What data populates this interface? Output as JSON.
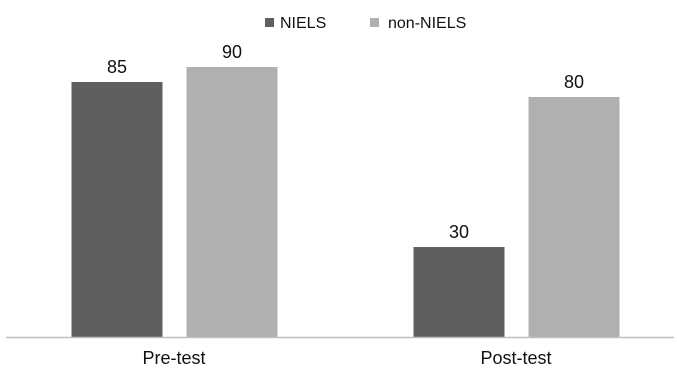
{
  "chart_data": {
    "type": "bar",
    "title": "",
    "xlabel": "",
    "ylabel": "",
    "categories": [
      "Pre-test",
      "Post-test"
    ],
    "series": [
      {
        "name": "NIELS",
        "values": [
          85,
          30
        ],
        "color": "#5f5f5f"
      },
      {
        "name": "non-NIELS",
        "values": [
          90,
          80
        ],
        "color": "#b0b0b0"
      }
    ],
    "ylim": [
      0,
      100
    ],
    "grid": false,
    "legend_position": "top-center",
    "axis_color": "#bfbfbf"
  }
}
